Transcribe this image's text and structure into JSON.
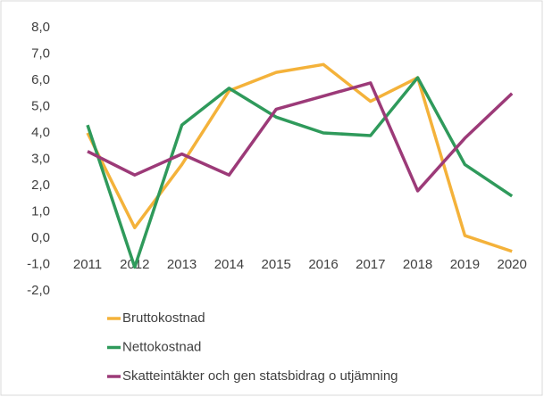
{
  "chart_data": {
    "type": "line",
    "categories": [
      "2011",
      "2012",
      "2013",
      "2014",
      "2015",
      "2016",
      "2017",
      "2018",
      "2019",
      "2020"
    ],
    "series": [
      {
        "name": "Bruttokostnad",
        "color": "#f4b23a",
        "values": [
          4.0,
          0.4,
          2.8,
          5.6,
          6.3,
          6.6,
          5.2,
          6.1,
          0.1,
          -0.5
        ]
      },
      {
        "name": "Nettokostnad",
        "color": "#2f9a5b",
        "values": [
          4.3,
          -1.1,
          4.3,
          5.7,
          4.6,
          4.0,
          3.9,
          6.1,
          2.8,
          1.6
        ]
      },
      {
        "name": "Skatteintäkter och gen statsbidrag o utjämning",
        "color": "#9c3a78",
        "values": [
          3.3,
          2.4,
          3.2,
          2.4,
          4.9,
          5.4,
          5.9,
          1.8,
          3.8,
          5.5
        ]
      }
    ],
    "ylim": [
      -2,
      8
    ],
    "yticks": [
      {
        "value": -2,
        "label": "-2,0"
      },
      {
        "value": -1,
        "label": "-1,0"
      },
      {
        "value": 0,
        "label": "0,0"
      },
      {
        "value": 1,
        "label": "1,0"
      },
      {
        "value": 2,
        "label": "2,0"
      },
      {
        "value": 3,
        "label": "3,0"
      },
      {
        "value": 4,
        "label": "4,0"
      },
      {
        "value": 5,
        "label": "5,0"
      },
      {
        "value": 6,
        "label": "6,0"
      },
      {
        "value": 7,
        "label": "7,0"
      },
      {
        "value": 8,
        "label": "8,0"
      }
    ],
    "grid": false,
    "legend": "bottom"
  }
}
